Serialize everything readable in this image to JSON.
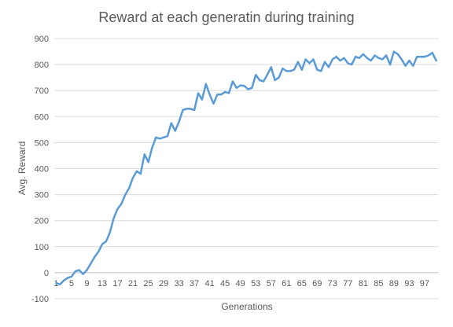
{
  "chart_data": {
    "type": "line",
    "title": "Reward at each generatin during training",
    "xlabel": "Generations",
    "ylabel": "Avg. Reward",
    "ylim": [
      -100,
      900
    ],
    "yticks": [
      -100,
      0,
      100,
      200,
      300,
      400,
      500,
      600,
      700,
      800,
      900
    ],
    "xtick_labels": [
      "1",
      "5",
      "9",
      "13",
      "17",
      "21",
      "25",
      "29",
      "33",
      "37",
      "41",
      "45",
      "49",
      "53",
      "57",
      "61",
      "65",
      "69",
      "73",
      "77",
      "81",
      "85",
      "89",
      "93",
      "97"
    ],
    "grid": true,
    "legend": "none",
    "color": "#5b9bd5",
    "series": [
      {
        "x": [
          1,
          2,
          3,
          4,
          5,
          6,
          7,
          8,
          9,
          10,
          11,
          12,
          13,
          14,
          15,
          16,
          17,
          18,
          19,
          20,
          21,
          22,
          23,
          24,
          25,
          26,
          27,
          28,
          29,
          30,
          31,
          32,
          33,
          34,
          35,
          36,
          37,
          38,
          39,
          40,
          41,
          42,
          43,
          44,
          45,
          46,
          47,
          48,
          49,
          50,
          51,
          52,
          53,
          54,
          55,
          56,
          57,
          58,
          59,
          60,
          61,
          62,
          63,
          64,
          65,
          66,
          67,
          68,
          69,
          70,
          71,
          72,
          73,
          74,
          75,
          76,
          77,
          78,
          79,
          80,
          81,
          82,
          83,
          84,
          85,
          86,
          87,
          88,
          89,
          90,
          91,
          92,
          93,
          94,
          95,
          96,
          97,
          98,
          99,
          100
        ],
        "values": [
          -40,
          -45,
          -30,
          -20,
          -15,
          5,
          10,
          -5,
          10,
          35,
          60,
          80,
          110,
          120,
          155,
          210,
          245,
          265,
          300,
          325,
          365,
          390,
          380,
          455,
          425,
          480,
          520,
          515,
          520,
          525,
          575,
          545,
          580,
          625,
          630,
          630,
          625,
          690,
          665,
          725,
          685,
          650,
          685,
          685,
          695,
          690,
          735,
          710,
          720,
          718,
          705,
          710,
          760,
          740,
          735,
          760,
          790,
          740,
          750,
          785,
          775,
          775,
          780,
          810,
          780,
          820,
          805,
          820,
          780,
          775,
          810,
          790,
          820,
          830,
          815,
          825,
          805,
          800,
          830,
          825,
          840,
          825,
          815,
          835,
          825,
          820,
          835,
          800,
          850,
          840,
          820,
          795,
          815,
          795,
          830,
          830,
          830,
          835,
          845,
          815
        ]
      }
    ]
  }
}
